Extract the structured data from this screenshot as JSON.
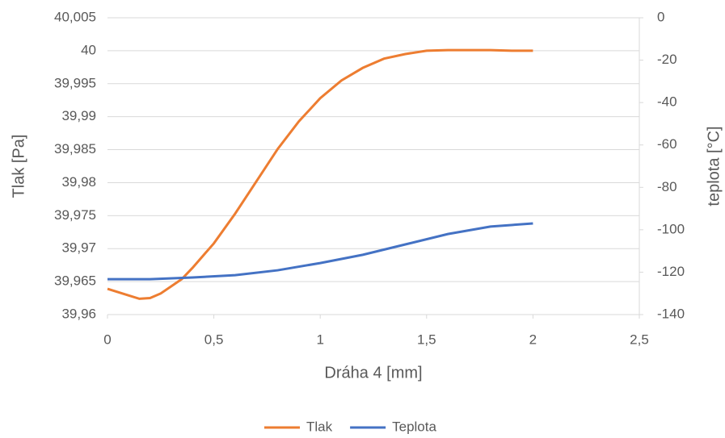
{
  "chart_data": {
    "type": "line",
    "x_label": "Dráha 4 [mm]",
    "y_label": "Tlak [Pa]",
    "y2_label": "teplota [°C]",
    "xlim": [
      0,
      2.5
    ],
    "xticks": [
      0,
      {
        "value": 0.5,
        "label": "0,5"
      },
      1,
      {
        "value": 1.5,
        "label": "1,5"
      },
      2,
      {
        "value": 2.5,
        "label": "2,5"
      }
    ],
    "ylim": [
      39.96,
      40.005
    ],
    "yticks": [
      {
        "value": 39.96,
        "label": "39,96"
      },
      {
        "value": 39.965,
        "label": "39,965"
      },
      {
        "value": 39.97,
        "label": "39,97"
      },
      {
        "value": 39.975,
        "label": "39,975"
      },
      {
        "value": 39.98,
        "label": "39,98"
      },
      {
        "value": 39.985,
        "label": "39,985"
      },
      {
        "value": 39.99,
        "label": "39,99"
      },
      {
        "value": 39.995,
        "label": "39,995"
      },
      40,
      {
        "value": 40.005,
        "label": "40,005"
      }
    ],
    "y2lim": [
      -140,
      0
    ],
    "y2ticks": [
      -140,
      -120,
      -100,
      -80,
      -60,
      -40,
      -20,
      0
    ],
    "grid": true,
    "legend": "bottom",
    "series": [
      {
        "name": "Tlak",
        "color": "#ed7d31",
        "x": [
          0,
          0.1,
          0.15,
          0.2,
          0.25,
          0.3,
          0.35,
          0.4,
          0.5,
          0.6,
          0.7,
          0.8,
          0.9,
          1.0,
          1.1,
          1.2,
          1.3,
          1.4,
          1.5,
          1.6,
          1.7,
          1.8,
          1.9,
          2.0
        ],
        "values": [
          39.9639,
          39.9629,
          39.9624,
          39.9625,
          39.9632,
          39.9643,
          39.9654,
          39.9671,
          39.9708,
          39.9753,
          39.9802,
          39.9851,
          39.9893,
          39.9928,
          39.9955,
          39.9974,
          39.9988,
          39.9995,
          40.0,
          40.0001,
          40.0001,
          40.0001,
          40.0,
          40.0
        ]
      },
      {
        "name": "Teplota",
        "color": "#4472c4",
        "axis": "y2",
        "x": [
          0,
          0.2,
          0.4,
          0.6,
          0.8,
          1.0,
          1.2,
          1.4,
          1.6,
          1.8,
          2.0
        ],
        "values": [
          -123.3,
          -123.3,
          -122.5,
          -121.4,
          -119.1,
          -115.7,
          -111.8,
          -106.9,
          -102.0,
          -98.5,
          -97.0
        ]
      }
    ]
  }
}
